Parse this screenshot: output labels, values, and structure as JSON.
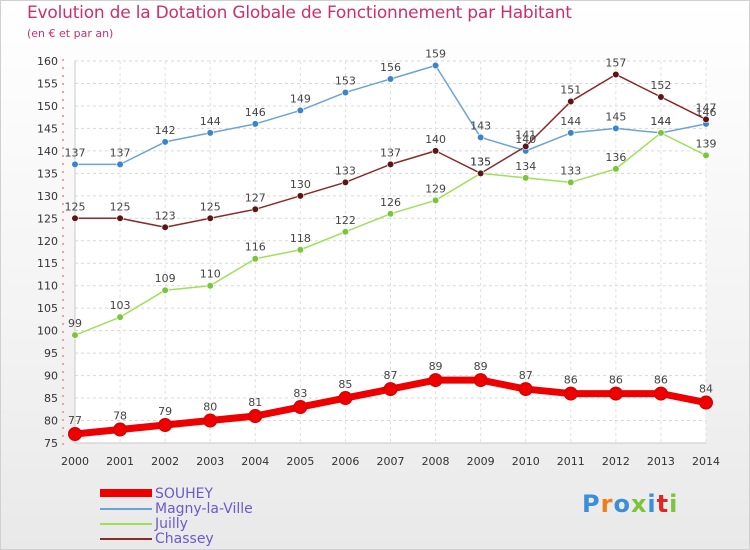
{
  "chart_data": {
    "type": "line",
    "title": "Evolution de la Dotation Globale de Fonctionnement par Habitant",
    "subtitle": "(en € et par an)",
    "xlabel": "",
    "ylabel": "",
    "x": [
      "2000",
      "2001",
      "2002",
      "2003",
      "2004",
      "2005",
      "2006",
      "2007",
      "2008",
      "2009",
      "2010",
      "2011",
      "2012",
      "2013",
      "2014"
    ],
    "ylim": [
      75,
      160
    ],
    "yticks": [
      75,
      80,
      85,
      90,
      95,
      100,
      105,
      110,
      115,
      120,
      125,
      130,
      135,
      140,
      145,
      150,
      155,
      160
    ],
    "grid": true,
    "legend": "bottom-left",
    "series": [
      {
        "name": "Magny-la-Ville",
        "color": "#6ba3d6",
        "marker": "#3a85c9",
        "values": [
          137,
          137,
          142,
          144,
          146,
          149,
          153,
          156,
          159,
          143,
          140,
          144,
          145,
          144,
          146
        ]
      },
      {
        "name": "Juilly",
        "color": "#9ee05a",
        "marker": "#7cc43a",
        "values": [
          99,
          103,
          109,
          110,
          116,
          118,
          122,
          126,
          129,
          135,
          134,
          133,
          136,
          144,
          139
        ]
      },
      {
        "name": "Chassey",
        "color": "#8a2a2a",
        "marker": "#5e1414",
        "values": [
          125,
          125,
          123,
          125,
          127,
          130,
          133,
          137,
          140,
          135,
          141,
          151,
          157,
          152,
          147
        ]
      },
      {
        "name": "SOUHEY",
        "color": "#ee0000",
        "marker": "#ee0000",
        "values": [
          77,
          78,
          79,
          80,
          81,
          83,
          85,
          87,
          89,
          89,
          87,
          86,
          86,
          86,
          84
        ]
      }
    ]
  },
  "legend_items": [
    {
      "name": "SOUHEY",
      "color": "#ee0000"
    },
    {
      "name": "Magny-la-Ville",
      "color": "#6ba3d6"
    },
    {
      "name": "Juilly",
      "color": "#9ee05a"
    },
    {
      "name": "Chassey",
      "color": "#8a2a2a"
    }
  ],
  "logo": {
    "text": "Proxiti",
    "colors": [
      "#3a8fd8",
      "#f07d1a",
      "#3a8fd8",
      "#7cc43a",
      "#3a8fd8",
      "#e02525",
      "#7cc43a"
    ]
  }
}
